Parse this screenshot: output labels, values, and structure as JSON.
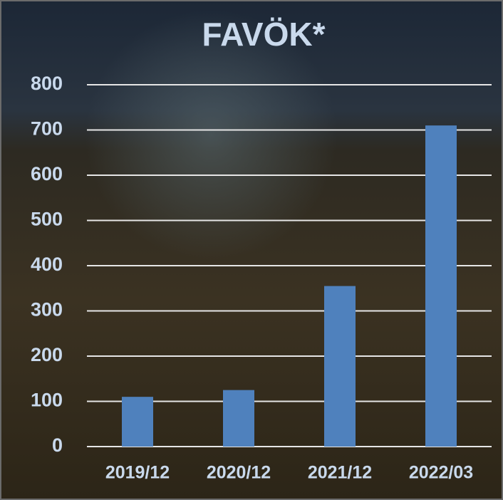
{
  "chart_data": {
    "type": "bar",
    "title": "FAVÖK*",
    "categories": [
      "2019/12",
      "2020/12",
      "2021/12",
      "2022/03"
    ],
    "values": [
      110,
      125,
      355,
      710
    ],
    "color": "#4f81bd",
    "ylim": [
      0,
      800
    ],
    "yticks": [
      0,
      100,
      200,
      300,
      400,
      500,
      600,
      700,
      800
    ],
    "grid": true
  }
}
